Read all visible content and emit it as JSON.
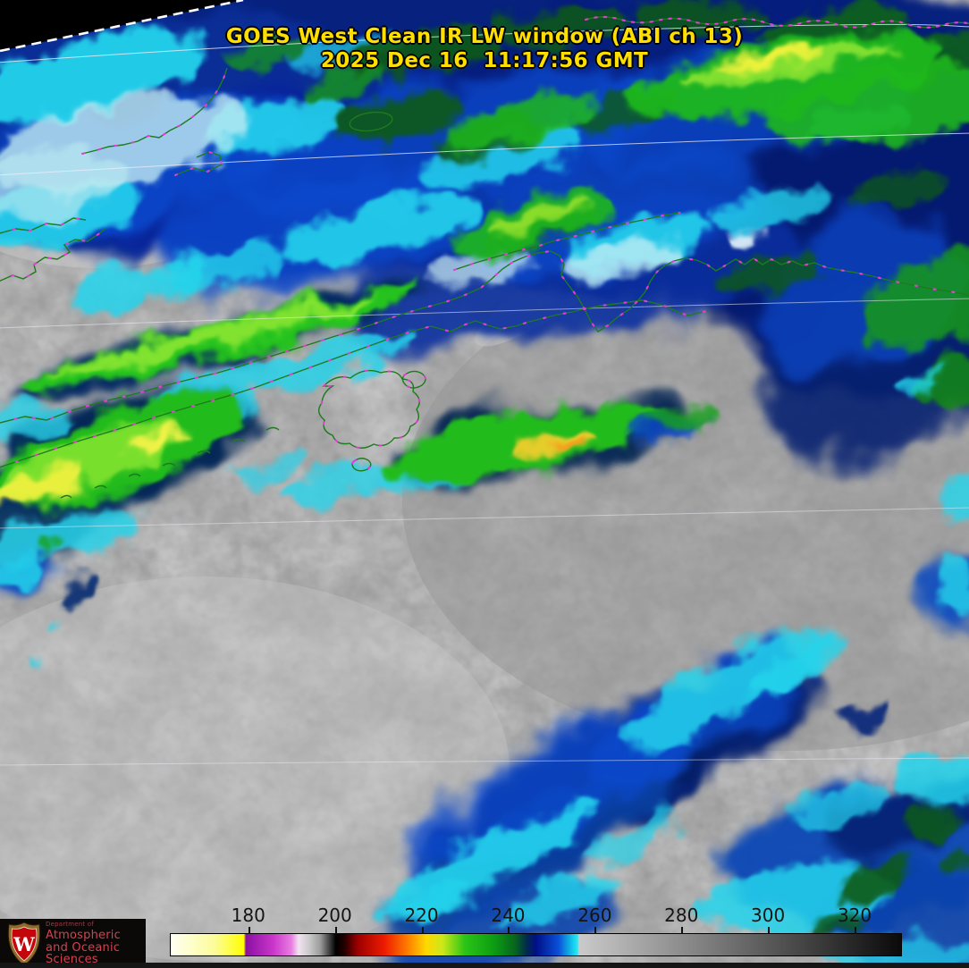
{
  "header": {
    "title_line1": "GOES West Clean IR LW window (ABI ch 13)",
    "title_line2": "2025 Dec 16  11:17:56 GMT",
    "title_color": "#ffdf00"
  },
  "branding": {
    "dept_small": "Department of",
    "dept_line1": "Atmospheric",
    "dept_line2": "and Oceanic Sciences",
    "crest_letter": "W",
    "text_color": "#d24250",
    "crest_red": "#c5050c"
  },
  "chart_data": {
    "type": "heatmap",
    "title": "GOES West Clean IR LW window (ABI ch 13)",
    "timestamp": "2025 Dec 16  11:17:56 GMT",
    "legend_position": "bottom",
    "colorbar": {
      "ticks": [
        {
          "value": "180",
          "pct": 10.62
        },
        {
          "value": "200",
          "pct": 22.48
        },
        {
          "value": "220",
          "pct": 34.34
        },
        {
          "value": "240",
          "pct": 46.2
        },
        {
          "value": "260",
          "pct": 58.06
        },
        {
          "value": "280",
          "pct": 69.92
        },
        {
          "value": "300",
          "pct": 81.78
        },
        {
          "value": "320",
          "pct": 93.64
        }
      ],
      "value_range": [
        162,
        331
      ],
      "stops": [
        {
          "pct": 0,
          "color": "#fffff4"
        },
        {
          "pct": 6,
          "color": "#fcfc9a"
        },
        {
          "pct": 10.0,
          "color": "#ffff00"
        },
        {
          "pct": 10.3,
          "color": "#8a10a2"
        },
        {
          "pct": 14.0,
          "color": "#c935c9"
        },
        {
          "pct": 16.5,
          "color": "#e87ce2"
        },
        {
          "pct": 17.5,
          "color": "#f2e2f0"
        },
        {
          "pct": 19.0,
          "color": "#c9c9c9"
        },
        {
          "pct": 20.5,
          "color": "#9a9a9a"
        },
        {
          "pct": 22.6,
          "color": "#000000"
        },
        {
          "pct": 23.8,
          "color": "#230000"
        },
        {
          "pct": 25.6,
          "color": "#9c0000"
        },
        {
          "pct": 29.3,
          "color": "#ee1c00"
        },
        {
          "pct": 32.4,
          "color": "#ff7c00"
        },
        {
          "pct": 35.0,
          "color": "#ffd800"
        },
        {
          "pct": 37.2,
          "color": "#cce818"
        },
        {
          "pct": 40.3,
          "color": "#2ac417"
        },
        {
          "pct": 44.3,
          "color": "#0c9c12"
        },
        {
          "pct": 47.2,
          "color": "#07641e"
        },
        {
          "pct": 48.8,
          "color": "#03284e"
        },
        {
          "pct": 50.0,
          "color": "#001088"
        },
        {
          "pct": 53.1,
          "color": "#0a50d8"
        },
        {
          "pct": 54.9,
          "color": "#12c2e8"
        },
        {
          "pct": 55.7,
          "color": "#2ae8f4"
        },
        {
          "pct": 55.9,
          "color": "#cacaca"
        },
        {
          "pct": 100,
          "color": "#0a0a0a"
        }
      ]
    },
    "overlay_colors": {
      "coastline": "#1e7a1e",
      "boundary_dots": "#f23ae0",
      "graticule": "#ffffff"
    }
  }
}
